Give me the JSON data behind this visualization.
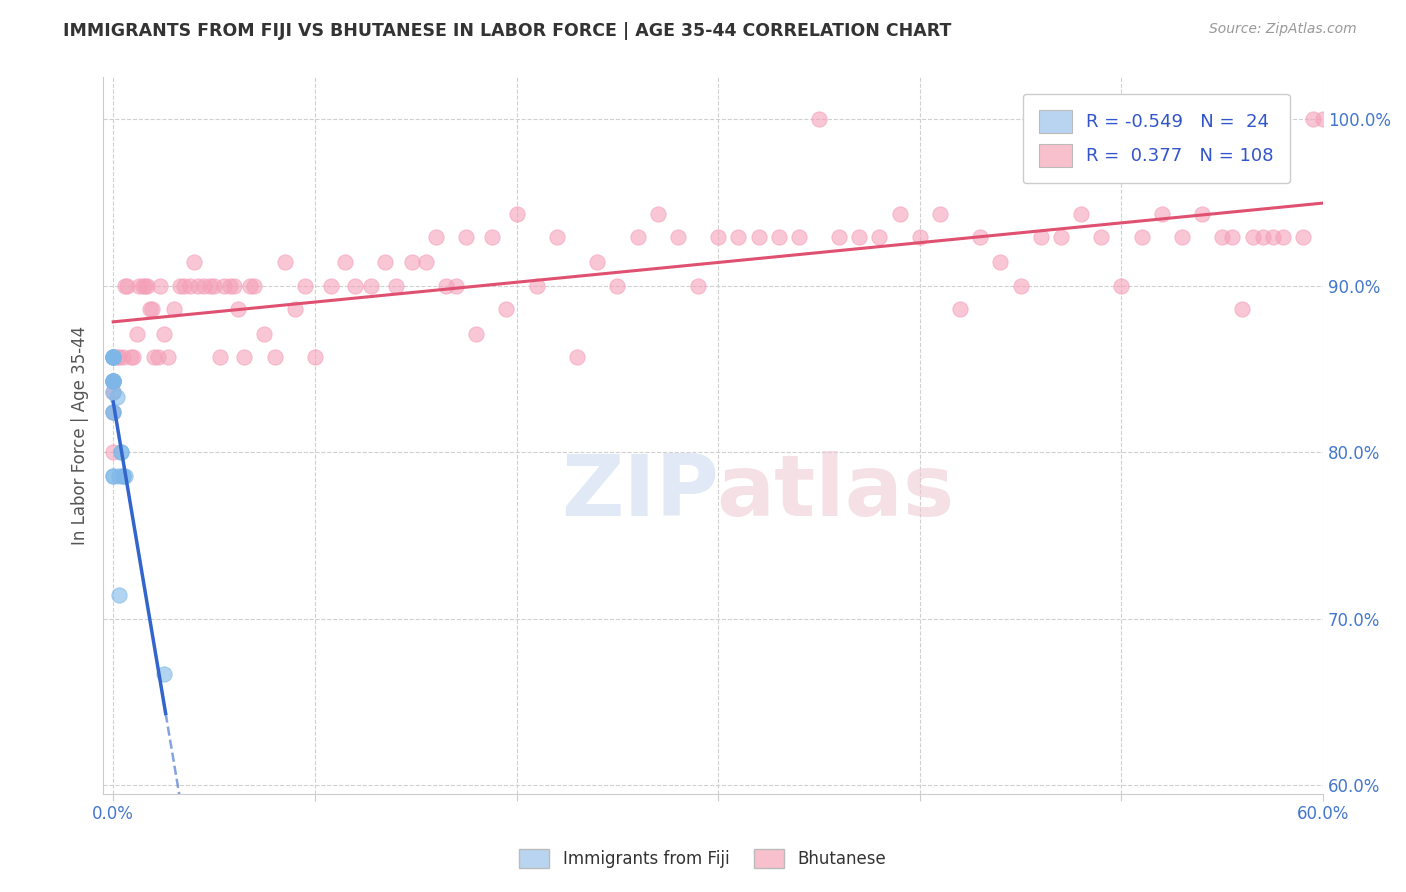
{
  "title": "IMMIGRANTS FROM FIJI VS BHUTANESE IN LABOR FORCE | AGE 35-44 CORRELATION CHART",
  "source_text": "Source: ZipAtlas.com",
  "ylabel": "In Labor Force | Age 35-44",
  "xlim": [
    -0.005,
    0.6
  ],
  "ylim": [
    0.595,
    1.025
  ],
  "xticks": [
    0.0,
    0.1,
    0.2,
    0.3,
    0.4,
    0.5,
    0.6
  ],
  "yticks": [
    0.6,
    0.7,
    0.8,
    0.9,
    1.0
  ],
  "yticklabels": [
    "60.0%",
    "70.0%",
    "80.0%",
    "90.0%",
    "100.0%"
  ],
  "fiji_scatter_color": "#7eb8e8",
  "bhutan_scatter_color": "#f4a0b8",
  "fiji_R": -0.549,
  "fiji_N": 24,
  "bhutan_R": 0.377,
  "bhutan_N": 108,
  "legend_fiji_color_box": "#b8d4f0",
  "legend_bhutan_color_box": "#f8c0cc",
  "fiji_trend_color": "#3366cc",
  "bhutan_trend_color": "#e05070",
  "grid_color": "#d0d0d0",
  "tick_label_color": "#4477cc",
  "fiji_scatter_x": [
    0.0,
    0.0,
    0.0,
    0.0,
    0.0,
    0.0,
    0.0,
    0.0,
    0.0,
    0.0,
    0.0,
    0.0,
    0.0,
    0.0,
    0.0,
    0.002,
    0.003,
    0.003,
    0.004,
    0.004,
    0.005,
    0.005,
    0.006,
    0.025
  ],
  "fiji_scatter_y": [
    0.857,
    0.857,
    0.857,
    0.857,
    0.857,
    0.843,
    0.843,
    0.843,
    0.843,
    0.843,
    0.836,
    0.824,
    0.824,
    0.786,
    0.786,
    0.833,
    0.786,
    0.714,
    0.8,
    0.8,
    0.786,
    0.786,
    0.786,
    0.667
  ],
  "bhutan_scatter_x": [
    0.0,
    0.0,
    0.0,
    0.0,
    0.0,
    0.0,
    0.002,
    0.003,
    0.005,
    0.006,
    0.007,
    0.009,
    0.01,
    0.012,
    0.013,
    0.015,
    0.016,
    0.017,
    0.018,
    0.019,
    0.02,
    0.022,
    0.023,
    0.025,
    0.027,
    0.03,
    0.033,
    0.035,
    0.038,
    0.04,
    0.042,
    0.045,
    0.048,
    0.05,
    0.053,
    0.055,
    0.058,
    0.06,
    0.062,
    0.065,
    0.068,
    0.07,
    0.075,
    0.08,
    0.085,
    0.09,
    0.095,
    0.1,
    0.108,
    0.115,
    0.12,
    0.128,
    0.135,
    0.14,
    0.148,
    0.155,
    0.16,
    0.165,
    0.17,
    0.175,
    0.18,
    0.188,
    0.195,
    0.2,
    0.21,
    0.22,
    0.23,
    0.24,
    0.25,
    0.26,
    0.27,
    0.28,
    0.29,
    0.3,
    0.31,
    0.32,
    0.33,
    0.34,
    0.35,
    0.36,
    0.37,
    0.38,
    0.39,
    0.4,
    0.41,
    0.42,
    0.43,
    0.44,
    0.45,
    0.46,
    0.47,
    0.48,
    0.49,
    0.5,
    0.51,
    0.52,
    0.53,
    0.54,
    0.55,
    0.555,
    0.56,
    0.565,
    0.57,
    0.575,
    0.58,
    0.59,
    0.595,
    0.6
  ],
  "bhutan_scatter_y": [
    0.857,
    0.843,
    0.843,
    0.836,
    0.824,
    0.8,
    0.857,
    0.857,
    0.857,
    0.9,
    0.9,
    0.857,
    0.857,
    0.871,
    0.9,
    0.9,
    0.9,
    0.9,
    0.886,
    0.886,
    0.857,
    0.857,
    0.9,
    0.871,
    0.857,
    0.886,
    0.9,
    0.9,
    0.9,
    0.914,
    0.9,
    0.9,
    0.9,
    0.9,
    0.857,
    0.9,
    0.9,
    0.9,
    0.886,
    0.857,
    0.9,
    0.9,
    0.871,
    0.857,
    0.914,
    0.886,
    0.9,
    0.857,
    0.9,
    0.914,
    0.9,
    0.9,
    0.914,
    0.9,
    0.914,
    0.914,
    0.929,
    0.9,
    0.9,
    0.929,
    0.871,
    0.929,
    0.886,
    0.943,
    0.9,
    0.929,
    0.857,
    0.914,
    0.9,
    0.929,
    0.943,
    0.929,
    0.9,
    0.929,
    0.929,
    0.929,
    0.929,
    0.929,
    1.0,
    0.929,
    0.929,
    0.929,
    0.943,
    0.929,
    0.943,
    0.886,
    0.929,
    0.914,
    0.9,
    0.929,
    0.929,
    0.943,
    0.929,
    0.9,
    0.929,
    0.943,
    0.929,
    0.943,
    0.929,
    0.929,
    0.886,
    0.929,
    0.929,
    0.929,
    0.929,
    0.929,
    1.0,
    1.0
  ]
}
